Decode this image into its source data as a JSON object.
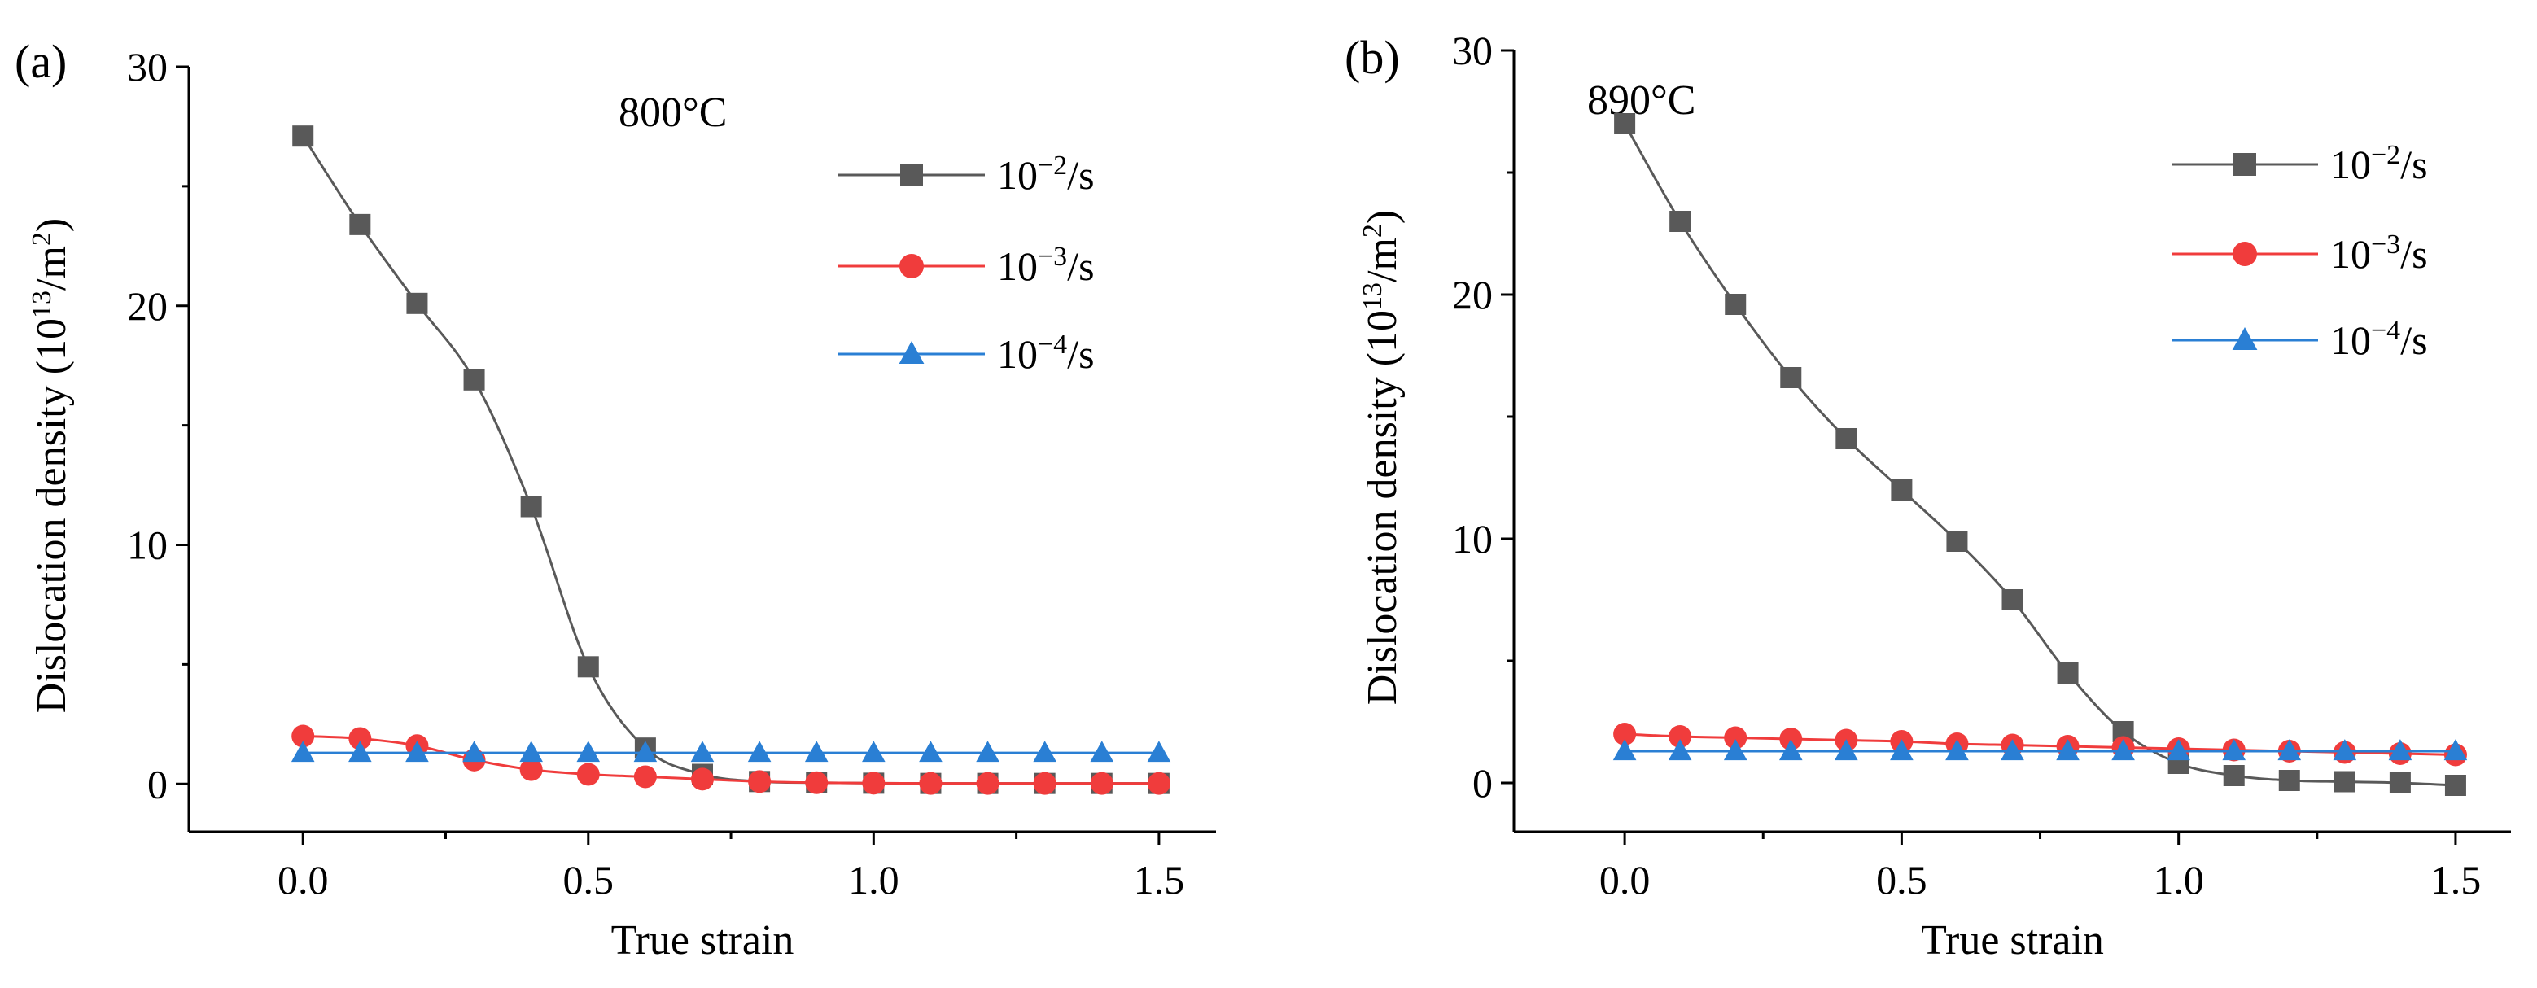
{
  "figure": {
    "panels": [
      "(a)",
      "(b)"
    ]
  },
  "chart_data": [
    {
      "type": "line",
      "panel_label": "(a)",
      "annotation": "800°C",
      "xlabel": "True strain",
      "ylabel_main": "Dislocation density (10",
      "ylabel_sup1": "13",
      "ylabel_mid": "/m",
      "ylabel_sup2": "2",
      "ylabel_end": ")",
      "xlim": [
        -0.2,
        1.6
      ],
      "ylim": [
        -2,
        30
      ],
      "xticks": [
        0.0,
        0.5,
        1.0,
        1.5
      ],
      "xtick_labels": [
        "0.0",
        "0.5",
        "1.0",
        "1.5"
      ],
      "yticks": [
        0,
        10,
        20,
        30
      ],
      "ytick_labels": [
        "0",
        "10",
        "20",
        "30"
      ],
      "legend_position": "top-right",
      "x": [
        0.0,
        0.1,
        0.2,
        0.3,
        0.4,
        0.5,
        0.6,
        0.7,
        0.8,
        0.9,
        1.0,
        1.1,
        1.2,
        1.3,
        1.4,
        1.5
      ],
      "series": [
        {
          "name": "10",
          "exp": "−2",
          "unit": "/s",
          "color": "#595959",
          "marker": "square",
          "values": [
            27.1,
            23.4,
            20.1,
            16.9,
            11.6,
            4.9,
            1.5,
            0.4,
            0.1,
            0.05,
            0.03,
            0.02,
            0.02,
            0.02,
            0.02,
            0.02
          ]
        },
        {
          "name": "10",
          "exp": "−3",
          "unit": "/s",
          "color": "#f03c3c",
          "marker": "circle",
          "values": [
            2.0,
            1.9,
            1.6,
            1.0,
            0.6,
            0.4,
            0.3,
            0.2,
            0.1,
            0.05,
            0.03,
            0.02,
            0.02,
            0.02,
            0.02,
            0.02
          ]
        },
        {
          "name": "10",
          "exp": "−4",
          "unit": "/s",
          "color": "#2a7fd4",
          "marker": "triangle",
          "values": [
            1.3,
            1.3,
            1.3,
            1.3,
            1.3,
            1.3,
            1.3,
            1.3,
            1.3,
            1.3,
            1.3,
            1.3,
            1.3,
            1.3,
            1.3,
            1.3
          ]
        }
      ]
    },
    {
      "type": "line",
      "panel_label": "(b)",
      "annotation": "890°C",
      "xlabel": "True strain",
      "ylabel_main": "Dislocation density (10",
      "ylabel_sup1": "13",
      "ylabel_mid": "/m",
      "ylabel_sup2": "2",
      "ylabel_end": ")",
      "xlim": [
        -0.2,
        1.6
      ],
      "ylim": [
        -2,
        30
      ],
      "xticks": [
        0.0,
        0.5,
        1.0,
        1.5
      ],
      "xtick_labels": [
        "0.0",
        "0.5",
        "1.0",
        "1.5"
      ],
      "yticks": [
        0,
        10,
        20,
        30
      ],
      "ytick_labels": [
        "0",
        "10",
        "20",
        "30"
      ],
      "legend_position": "top-right",
      "x": [
        0.0,
        0.1,
        0.2,
        0.3,
        0.4,
        0.5,
        0.6,
        0.7,
        0.8,
        0.9,
        1.0,
        1.1,
        1.2,
        1.3,
        1.4,
        1.5
      ],
      "series": [
        {
          "name": "10",
          "exp": "−2",
          "unit": "/s",
          "color": "#595959",
          "marker": "square",
          "values": [
            27.0,
            23.0,
            19.6,
            16.6,
            14.1,
            12.0,
            9.9,
            7.5,
            4.5,
            2.1,
            0.8,
            0.3,
            0.1,
            0.05,
            0.0,
            -0.1
          ]
        },
        {
          "name": "10",
          "exp": "−3",
          "unit": "/s",
          "color": "#f03c3c",
          "marker": "circle",
          "values": [
            2.0,
            1.9,
            1.85,
            1.8,
            1.75,
            1.7,
            1.6,
            1.55,
            1.5,
            1.45,
            1.4,
            1.35,
            1.3,
            1.25,
            1.2,
            1.15
          ]
        },
        {
          "name": "10",
          "exp": "−4",
          "unit": "/s",
          "color": "#2a7fd4",
          "marker": "triangle",
          "values": [
            1.3,
            1.3,
            1.3,
            1.3,
            1.3,
            1.3,
            1.3,
            1.3,
            1.3,
            1.3,
            1.3,
            1.3,
            1.3,
            1.3,
            1.3,
            1.3
          ]
        }
      ]
    }
  ]
}
